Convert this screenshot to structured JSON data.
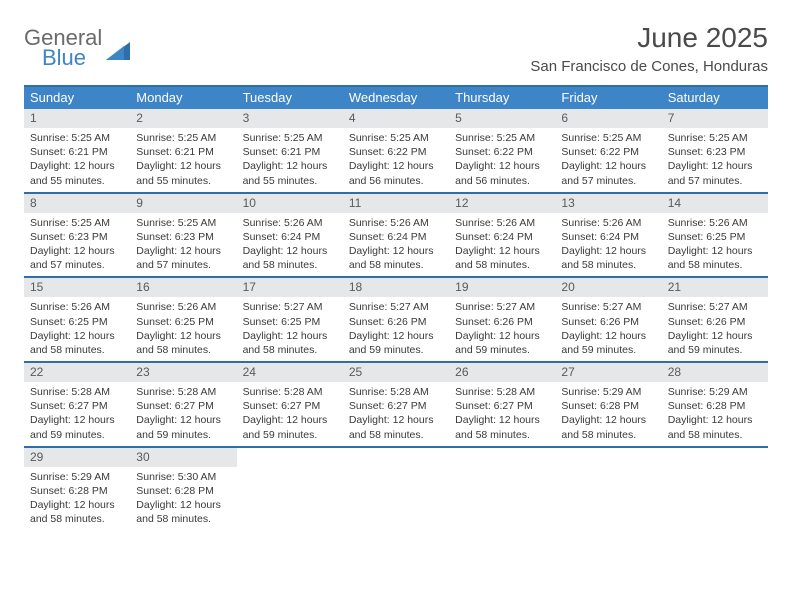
{
  "logo": {
    "text_top": "General",
    "text_bottom": "Blue"
  },
  "title": "June 2025",
  "location": "San Francisco de Cones, Honduras",
  "colors": {
    "header_bg": "#3d85c6",
    "header_border": "#2f6fa8",
    "daynum_bg": "#e6e7e8",
    "text_dark": "#4a4a4a",
    "body_text": "#3a3a3a"
  },
  "day_headers": [
    "Sunday",
    "Monday",
    "Tuesday",
    "Wednesday",
    "Thursday",
    "Friday",
    "Saturday"
  ],
  "weeks": [
    [
      {
        "n": "1",
        "sr": "5:25 AM",
        "ss": "6:21 PM",
        "dl": "12 hours and 55 minutes."
      },
      {
        "n": "2",
        "sr": "5:25 AM",
        "ss": "6:21 PM",
        "dl": "12 hours and 55 minutes."
      },
      {
        "n": "3",
        "sr": "5:25 AM",
        "ss": "6:21 PM",
        "dl": "12 hours and 55 minutes."
      },
      {
        "n": "4",
        "sr": "5:25 AM",
        "ss": "6:22 PM",
        "dl": "12 hours and 56 minutes."
      },
      {
        "n": "5",
        "sr": "5:25 AM",
        "ss": "6:22 PM",
        "dl": "12 hours and 56 minutes."
      },
      {
        "n": "6",
        "sr": "5:25 AM",
        "ss": "6:22 PM",
        "dl": "12 hours and 57 minutes."
      },
      {
        "n": "7",
        "sr": "5:25 AM",
        "ss": "6:23 PM",
        "dl": "12 hours and 57 minutes."
      }
    ],
    [
      {
        "n": "8",
        "sr": "5:25 AM",
        "ss": "6:23 PM",
        "dl": "12 hours and 57 minutes."
      },
      {
        "n": "9",
        "sr": "5:25 AM",
        "ss": "6:23 PM",
        "dl": "12 hours and 57 minutes."
      },
      {
        "n": "10",
        "sr": "5:26 AM",
        "ss": "6:24 PM",
        "dl": "12 hours and 58 minutes."
      },
      {
        "n": "11",
        "sr": "5:26 AM",
        "ss": "6:24 PM",
        "dl": "12 hours and 58 minutes."
      },
      {
        "n": "12",
        "sr": "5:26 AM",
        "ss": "6:24 PM",
        "dl": "12 hours and 58 minutes."
      },
      {
        "n": "13",
        "sr": "5:26 AM",
        "ss": "6:24 PM",
        "dl": "12 hours and 58 minutes."
      },
      {
        "n": "14",
        "sr": "5:26 AM",
        "ss": "6:25 PM",
        "dl": "12 hours and 58 minutes."
      }
    ],
    [
      {
        "n": "15",
        "sr": "5:26 AM",
        "ss": "6:25 PM",
        "dl": "12 hours and 58 minutes."
      },
      {
        "n": "16",
        "sr": "5:26 AM",
        "ss": "6:25 PM",
        "dl": "12 hours and 58 minutes."
      },
      {
        "n": "17",
        "sr": "5:27 AM",
        "ss": "6:25 PM",
        "dl": "12 hours and 58 minutes."
      },
      {
        "n": "18",
        "sr": "5:27 AM",
        "ss": "6:26 PM",
        "dl": "12 hours and 59 minutes."
      },
      {
        "n": "19",
        "sr": "5:27 AM",
        "ss": "6:26 PM",
        "dl": "12 hours and 59 minutes."
      },
      {
        "n": "20",
        "sr": "5:27 AM",
        "ss": "6:26 PM",
        "dl": "12 hours and 59 minutes."
      },
      {
        "n": "21",
        "sr": "5:27 AM",
        "ss": "6:26 PM",
        "dl": "12 hours and 59 minutes."
      }
    ],
    [
      {
        "n": "22",
        "sr": "5:28 AM",
        "ss": "6:27 PM",
        "dl": "12 hours and 59 minutes."
      },
      {
        "n": "23",
        "sr": "5:28 AM",
        "ss": "6:27 PM",
        "dl": "12 hours and 59 minutes."
      },
      {
        "n": "24",
        "sr": "5:28 AM",
        "ss": "6:27 PM",
        "dl": "12 hours and 59 minutes."
      },
      {
        "n": "25",
        "sr": "5:28 AM",
        "ss": "6:27 PM",
        "dl": "12 hours and 58 minutes."
      },
      {
        "n": "26",
        "sr": "5:28 AM",
        "ss": "6:27 PM",
        "dl": "12 hours and 58 minutes."
      },
      {
        "n": "27",
        "sr": "5:29 AM",
        "ss": "6:28 PM",
        "dl": "12 hours and 58 minutes."
      },
      {
        "n": "28",
        "sr": "5:29 AM",
        "ss": "6:28 PM",
        "dl": "12 hours and 58 minutes."
      }
    ],
    [
      {
        "n": "29",
        "sr": "5:29 AM",
        "ss": "6:28 PM",
        "dl": "12 hours and 58 minutes."
      },
      {
        "n": "30",
        "sr": "5:30 AM",
        "ss": "6:28 PM",
        "dl": "12 hours and 58 minutes."
      },
      {
        "empty": true
      },
      {
        "empty": true
      },
      {
        "empty": true
      },
      {
        "empty": true
      },
      {
        "empty": true
      }
    ]
  ],
  "labels": {
    "sunrise": "Sunrise:",
    "sunset": "Sunset:",
    "daylight": "Daylight:"
  }
}
